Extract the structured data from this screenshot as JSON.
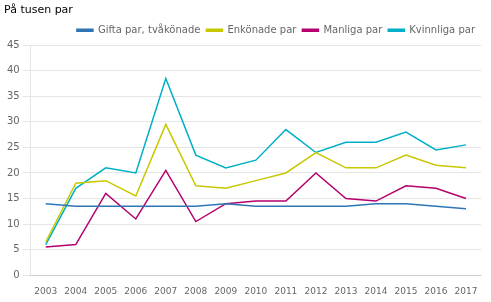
{
  "chart_data": {
    "type": "line",
    "ylabel": "På tusen par",
    "categories": [
      2003,
      2004,
      2005,
      2006,
      2007,
      2008,
      2009,
      2010,
      2011,
      2012,
      2013,
      2014,
      2015,
      2016,
      2017
    ],
    "series": [
      {
        "name": "Gifta par, tvåkönade",
        "color": "#2e75b6",
        "values": [
          14.0,
          13.5,
          13.5,
          13.5,
          13.5,
          13.5,
          14.0,
          13.5,
          13.5,
          13.5,
          13.5,
          14.0,
          14.0,
          13.5,
          13.0
        ]
      },
      {
        "name": "Enkönade par",
        "color": "#c8c800",
        "values": [
          6.5,
          18.0,
          18.5,
          15.5,
          29.5,
          17.5,
          17.0,
          18.5,
          20.0,
          24.0,
          21.0,
          21.0,
          23.5,
          21.5,
          21.0
        ]
      },
      {
        "name": "Manliga par",
        "color": "#b5006e",
        "values": [
          5.5,
          6.0,
          16.0,
          11.0,
          20.5,
          10.5,
          14.0,
          14.5,
          14.5,
          20.0,
          15.0,
          14.5,
          17.5,
          17.0,
          15.0
        ]
      },
      {
        "name": "Kvinnliga par",
        "color": "#00b0c8",
        "values": [
          6.0,
          17.0,
          21.0,
          20.0,
          38.5,
          23.5,
          21.0,
          22.5,
          28.5,
          24.0,
          26.0,
          26.0,
          28.0,
          24.5,
          25.5
        ]
      }
    ],
    "ylim": [
      0,
      45
    ],
    "yticks": [
      0,
      5,
      10,
      15,
      20,
      25,
      30,
      35,
      40,
      45
    ],
    "grid": true,
    "legend": "upper right"
  }
}
